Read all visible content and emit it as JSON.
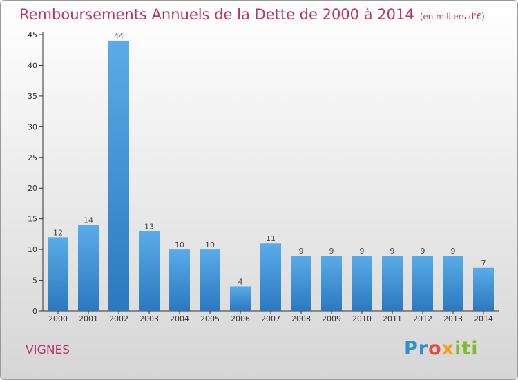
{
  "title": "Remboursements Annuels de la Dette de 2000 à 2014",
  "subtitle": "(en milliers d'€)",
  "commune": "VIGNES",
  "logo": "Proxiti",
  "colors": {
    "title": "#c0306a",
    "bar_top": "#5aace8",
    "bar_bottom": "#2b78c0"
  },
  "chart_data": {
    "type": "bar",
    "title": "Remboursements Annuels de la Dette de 2000 à 2014",
    "subtitle": "(en milliers d'€)",
    "categories": [
      "2000",
      "2001",
      "2002",
      "2003",
      "2004",
      "2005",
      "2006",
      "2007",
      "2008",
      "2009",
      "2010",
      "2011",
      "2012",
      "2013",
      "2014"
    ],
    "values": [
      12,
      14,
      44,
      13,
      10,
      10,
      4,
      11,
      9,
      9,
      9,
      9,
      9,
      9,
      7
    ],
    "ylim": [
      0,
      45
    ],
    "yticks": [
      0,
      5,
      10,
      15,
      20,
      25,
      30,
      35,
      40,
      45
    ],
    "xlabel": "",
    "ylabel": "",
    "grid": false,
    "legend": "none"
  }
}
